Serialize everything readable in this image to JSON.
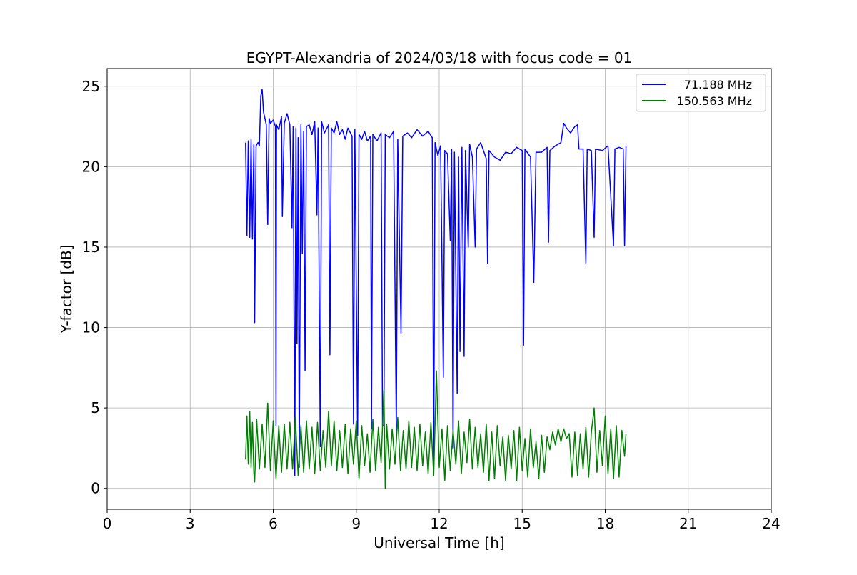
{
  "chart_data": {
    "type": "line",
    "title": "EGYPT-Alexandria of 2024/03/18 with focus code = 01",
    "xlabel": "Universal Time [h]",
    "ylabel": "Y-factor [dB]",
    "xlim": [
      0,
      24
    ],
    "ylim": [
      -1.3,
      26.1
    ],
    "xticks": [
      0,
      3,
      6,
      9,
      12,
      15,
      18,
      21,
      24
    ],
    "yticks": [
      0,
      5,
      10,
      15,
      20,
      25
    ],
    "grid": true,
    "legend_position": "top-right",
    "series": [
      {
        "name": "71.188 MHz",
        "color": "#0000ff",
        "points": [
          [
            5.0,
            21.5
          ],
          [
            5.05,
            15.7
          ],
          [
            5.1,
            21.6
          ],
          [
            5.15,
            15.6
          ],
          [
            5.2,
            21.7
          ],
          [
            5.25,
            15.5
          ],
          [
            5.3,
            21.4
          ],
          [
            5.33,
            10.3
          ],
          [
            5.38,
            21.3
          ],
          [
            5.45,
            21.5
          ],
          [
            5.5,
            21.3
          ],
          [
            5.55,
            24.4
          ],
          [
            5.6,
            24.8
          ],
          [
            5.65,
            23.4
          ],
          [
            5.7,
            23.0
          ],
          [
            5.75,
            22.6
          ],
          [
            5.8,
            16.4
          ],
          [
            5.85,
            23.0
          ],
          [
            5.9,
            22.7
          ],
          [
            6.0,
            22.9
          ],
          [
            6.08,
            22.5
          ],
          [
            6.1,
            3.9
          ],
          [
            6.12,
            22.6
          ],
          [
            6.2,
            22.3
          ],
          [
            6.3,
            23.1
          ],
          [
            6.33,
            16.9
          ],
          [
            6.4,
            22.7
          ],
          [
            6.5,
            23.3
          ],
          [
            6.6,
            22.6
          ],
          [
            6.68,
            16.2
          ],
          [
            6.72,
            22.5
          ],
          [
            6.78,
            0.8
          ],
          [
            6.82,
            22.4
          ],
          [
            6.86,
            9.0
          ],
          [
            6.9,
            21.8
          ],
          [
            6.94,
            1.3
          ],
          [
            7.0,
            22.6
          ],
          [
            7.05,
            14.6
          ],
          [
            7.1,
            22.2
          ],
          [
            7.15,
            7.3
          ],
          [
            7.2,
            22.5
          ],
          [
            7.3,
            22.6
          ],
          [
            7.4,
            22.0
          ],
          [
            7.5,
            22.8
          ],
          [
            7.58,
            17.0
          ],
          [
            7.62,
            22.4
          ],
          [
            7.7,
            2.6
          ],
          [
            7.75,
            22.8
          ],
          [
            7.85,
            22.1
          ],
          [
            8.0,
            22.6
          ],
          [
            8.05,
            8.3
          ],
          [
            8.1,
            22.4
          ],
          [
            8.2,
            22.1
          ],
          [
            8.3,
            22.8
          ],
          [
            8.4,
            22.0
          ],
          [
            8.5,
            22.3
          ],
          [
            8.6,
            21.7
          ],
          [
            8.7,
            22.4
          ],
          [
            8.85,
            21.9
          ],
          [
            8.9,
            4.0
          ],
          [
            8.95,
            22.3
          ],
          [
            9.05,
            3.3
          ],
          [
            9.1,
            22.0
          ],
          [
            9.2,
            21.7
          ],
          [
            9.3,
            22.2
          ],
          [
            9.4,
            21.6
          ],
          [
            9.52,
            21.9
          ],
          [
            9.55,
            3.7
          ],
          [
            9.6,
            22.0
          ],
          [
            9.75,
            21.6
          ],
          [
            9.9,
            22.1
          ],
          [
            9.95,
            3.9
          ],
          [
            10.0,
            3.9
          ],
          [
            10.05,
            22.0
          ],
          [
            10.2,
            21.8
          ],
          [
            10.35,
            22.2
          ],
          [
            10.45,
            3.5
          ],
          [
            10.5,
            21.7
          ],
          [
            10.62,
            9.6
          ],
          [
            10.68,
            21.9
          ],
          [
            10.85,
            22.1
          ],
          [
            11.0,
            21.8
          ],
          [
            11.2,
            22.3
          ],
          [
            11.4,
            21.9
          ],
          [
            11.6,
            22.2
          ],
          [
            11.75,
            21.8
          ],
          [
            11.8,
            1.4
          ],
          [
            11.85,
            21.5
          ],
          [
            11.95,
            20.7
          ],
          [
            12.05,
            21.3
          ],
          [
            12.15,
            6.9
          ],
          [
            12.2,
            21.0
          ],
          [
            12.3,
            20.8
          ],
          [
            12.4,
            15.4
          ],
          [
            12.45,
            21.1
          ],
          [
            12.5,
            2.5
          ],
          [
            12.55,
            20.9
          ],
          [
            12.65,
            5.9
          ],
          [
            12.7,
            20.6
          ],
          [
            12.75,
            8.5
          ],
          [
            12.82,
            21.2
          ],
          [
            12.9,
            8.2
          ],
          [
            12.95,
            21.0
          ],
          [
            13.05,
            15.0
          ],
          [
            13.1,
            21.4
          ],
          [
            13.2,
            20.6
          ],
          [
            13.3,
            15.0
          ],
          [
            13.35,
            21.1
          ],
          [
            13.5,
            21.5
          ],
          [
            13.7,
            20.5
          ],
          [
            13.75,
            14.0
          ],
          [
            13.8,
            21.0
          ],
          [
            14.0,
            20.6
          ],
          [
            14.2,
            20.4
          ],
          [
            14.4,
            20.9
          ],
          [
            14.6,
            20.8
          ],
          [
            14.8,
            21.2
          ],
          [
            15.0,
            21.0
          ],
          [
            15.05,
            8.9
          ],
          [
            15.1,
            21.1
          ],
          [
            15.3,
            20.6
          ],
          [
            15.42,
            12.8
          ],
          [
            15.5,
            20.9
          ],
          [
            15.7,
            20.9
          ],
          [
            15.9,
            21.2
          ],
          [
            15.95,
            15.3
          ],
          [
            16.0,
            21.0
          ],
          [
            16.2,
            21.3
          ],
          [
            16.4,
            21.5
          ],
          [
            16.5,
            22.7
          ],
          [
            16.6,
            22.4
          ],
          [
            16.75,
            22.1
          ],
          [
            16.9,
            22.5
          ],
          [
            17.0,
            22.6
          ],
          [
            17.05,
            21.1
          ],
          [
            17.2,
            21.1
          ],
          [
            17.3,
            14.0
          ],
          [
            17.35,
            21.1
          ],
          [
            17.5,
            21.0
          ],
          [
            17.6,
            15.6
          ],
          [
            17.65,
            21.1
          ],
          [
            17.9,
            21.0
          ],
          [
            18.1,
            21.3
          ],
          [
            18.3,
            15.1
          ],
          [
            18.35,
            21.1
          ],
          [
            18.5,
            21.2
          ],
          [
            18.65,
            21.1
          ],
          [
            18.7,
            15.1
          ],
          [
            18.75,
            21.3
          ]
        ]
      },
      {
        "name": "150.563 MHz",
        "color": "#008000",
        "points": [
          [
            5.0,
            1.8
          ],
          [
            5.05,
            4.5
          ],
          [
            5.1,
            1.5
          ],
          [
            5.15,
            4.8
          ],
          [
            5.2,
            1.3
          ],
          [
            5.25,
            4.1
          ],
          [
            5.3,
            0.9
          ],
          [
            5.33,
            0.4
          ],
          [
            5.4,
            4.3
          ],
          [
            5.5,
            1.2
          ],
          [
            5.6,
            4.0
          ],
          [
            5.7,
            1.3
          ],
          [
            5.8,
            5.3
          ],
          [
            5.9,
            1.1
          ],
          [
            6.0,
            4.2
          ],
          [
            6.1,
            0.6
          ],
          [
            6.2,
            3.9
          ],
          [
            6.3,
            1.0
          ],
          [
            6.4,
            4.0
          ],
          [
            6.5,
            1.2
          ],
          [
            6.6,
            4.1
          ],
          [
            6.7,
            1.2
          ],
          [
            6.8,
            4.4
          ],
          [
            6.9,
            0.8
          ],
          [
            7.0,
            3.9
          ],
          [
            7.1,
            1.0
          ],
          [
            7.2,
            4.2
          ],
          [
            7.3,
            1.2
          ],
          [
            7.4,
            3.8
          ],
          [
            7.5,
            0.9
          ],
          [
            7.6,
            4.1
          ],
          [
            7.7,
            1.1
          ],
          [
            7.8,
            3.6
          ],
          [
            7.9,
            1.3
          ],
          [
            8.0,
            4.8
          ],
          [
            8.1,
            1.4
          ],
          [
            8.2,
            4.2
          ],
          [
            8.3,
            1.1
          ],
          [
            8.4,
            3.6
          ],
          [
            8.5,
            1.3
          ],
          [
            8.6,
            4.0
          ],
          [
            8.7,
            0.9
          ],
          [
            8.8,
            3.7
          ],
          [
            8.9,
            1.5
          ],
          [
            9.0,
            4.2
          ],
          [
            9.1,
            0.6
          ],
          [
            9.2,
            3.9
          ],
          [
            9.3,
            1.4
          ],
          [
            9.4,
            3.4
          ],
          [
            9.5,
            1.0
          ],
          [
            9.6,
            4.3
          ],
          [
            9.7,
            1.1
          ],
          [
            9.8,
            3.8
          ],
          [
            9.9,
            1.6
          ],
          [
            10.0,
            6.1
          ],
          [
            10.05,
            0.0
          ],
          [
            10.1,
            4.0
          ],
          [
            10.2,
            1.2
          ],
          [
            10.3,
            3.7
          ],
          [
            10.4,
            1.5
          ],
          [
            10.5,
            4.4
          ],
          [
            10.6,
            1.1
          ],
          [
            10.7,
            3.6
          ],
          [
            10.8,
            1.2
          ],
          [
            10.9,
            4.2
          ],
          [
            11.0,
            1.3
          ],
          [
            11.1,
            3.8
          ],
          [
            11.2,
            1.1
          ],
          [
            11.3,
            4.0
          ],
          [
            11.4,
            1.4
          ],
          [
            11.5,
            3.5
          ],
          [
            11.6,
            0.9
          ],
          [
            11.7,
            4.1
          ],
          [
            11.8,
            0.8
          ],
          [
            11.9,
            7.3
          ],
          [
            12.0,
            1.3
          ],
          [
            12.1,
            3.7
          ],
          [
            12.2,
            0.5
          ],
          [
            12.3,
            3.9
          ],
          [
            12.4,
            1.1
          ],
          [
            12.5,
            3.6
          ],
          [
            12.6,
            1.5
          ],
          [
            12.7,
            4.2
          ],
          [
            12.8,
            0.9
          ],
          [
            12.9,
            3.5
          ],
          [
            13.0,
            1.6
          ],
          [
            13.1,
            4.3
          ],
          [
            13.2,
            1.2
          ],
          [
            13.3,
            3.8
          ],
          [
            13.4,
            1.3
          ],
          [
            13.5,
            3.4
          ],
          [
            13.6,
            1.0
          ],
          [
            13.7,
            4.0
          ],
          [
            13.8,
            0.5
          ],
          [
            13.9,
            3.5
          ],
          [
            14.0,
            0.6
          ],
          [
            14.1,
            3.9
          ],
          [
            14.2,
            1.4
          ],
          [
            14.3,
            3.2
          ],
          [
            14.4,
            0.5
          ],
          [
            14.5,
            3.3
          ],
          [
            14.6,
            1.2
          ],
          [
            14.7,
            3.6
          ],
          [
            14.8,
            0.5
          ],
          [
            14.9,
            3.8
          ],
          [
            15.0,
            1.1
          ],
          [
            15.1,
            3.1
          ],
          [
            15.2,
            0.7
          ],
          [
            15.3,
            3.7
          ],
          [
            15.4,
            1.3
          ],
          [
            15.5,
            2.9
          ],
          [
            15.6,
            0.6
          ],
          [
            15.7,
            3.3
          ],
          [
            15.8,
            1.0
          ],
          [
            15.9,
            3.2
          ],
          [
            16.0,
            2.4
          ],
          [
            16.1,
            3.5
          ],
          [
            16.2,
            2.7
          ],
          [
            16.3,
            3.7
          ],
          [
            16.4,
            2.9
          ],
          [
            16.5,
            3.7
          ],
          [
            16.6,
            3.1
          ],
          [
            16.7,
            3.4
          ],
          [
            16.8,
            0.7
          ],
          [
            16.9,
            3.5
          ],
          [
            17.0,
            0.8
          ],
          [
            17.1,
            3.4
          ],
          [
            17.2,
            1.2
          ],
          [
            17.3,
            3.8
          ],
          [
            17.4,
            0.7
          ],
          [
            17.5,
            3.5
          ],
          [
            17.6,
            5.0
          ],
          [
            17.7,
            1.0
          ],
          [
            17.8,
            3.6
          ],
          [
            17.9,
            1.4
          ],
          [
            18.0,
            4.5
          ],
          [
            18.1,
            0.9
          ],
          [
            18.2,
            3.7
          ],
          [
            18.3,
            0.6
          ],
          [
            18.4,
            3.9
          ],
          [
            18.5,
            0.7
          ],
          [
            18.6,
            3.6
          ],
          [
            18.7,
            2.0
          ],
          [
            18.75,
            3.4
          ]
        ]
      }
    ]
  }
}
